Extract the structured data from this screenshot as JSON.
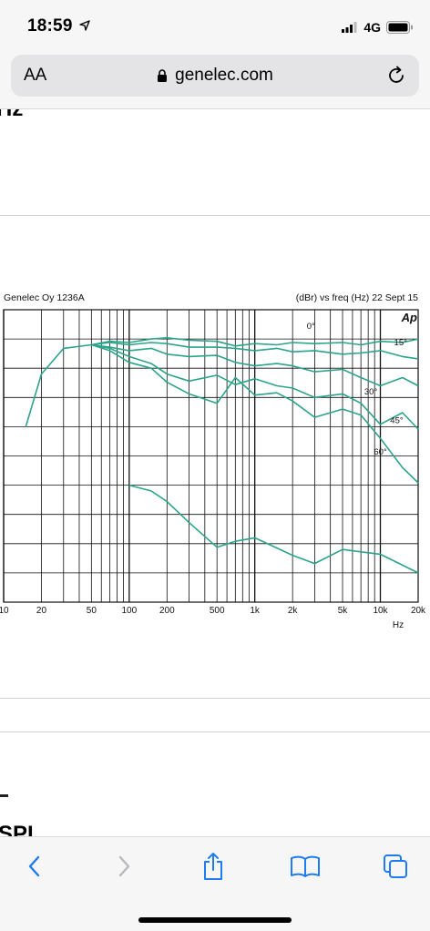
{
  "status_bar": {
    "time": "18:59",
    "network": "4G"
  },
  "address_bar": {
    "text_size_label": "AA",
    "url": "genelec.com"
  },
  "page": {
    "heading_top_fragment": "Hz",
    "heading_bottom_fragment": "SPL"
  },
  "chart_data": {
    "type": "line",
    "title": "Genelec Oy 1236A",
    "subtitle": "(dBr) vs freq (Hz) 22 Sept 15",
    "logo_text": "Ap",
    "xlabel": "Hz",
    "xscale": "log",
    "xlim": [
      10,
      20000
    ],
    "x_tick_labels": [
      "10",
      "20",
      "50",
      "100",
      "200",
      "500",
      "1k",
      "2k",
      "5k",
      "10k",
      "20k"
    ],
    "y_tick_labels": [],
    "grid": true,
    "color": "#2aa58b",
    "series": [
      {
        "name": "0°",
        "x": [
          15,
          20,
          30,
          50,
          70,
          100,
          150,
          200,
          300,
          500,
          700,
          1000,
          1500,
          2000,
          3000,
          5000,
          7000,
          10000,
          15000,
          20000
        ],
        "y": [
          -7,
          -2.5,
          -0.3,
          0,
          0.3,
          0.2,
          0.5,
          0.6,
          0.4,
          0.3,
          -0.1,
          0.1,
          0,
          0.2,
          0.1,
          0.2,
          0,
          0.3,
          0.2,
          0.5
        ]
      },
      {
        "name": "15°",
        "x": [
          50,
          70,
          100,
          150,
          200,
          300,
          500,
          700,
          1000,
          1500,
          2000,
          3000,
          5000,
          7000,
          10000,
          15000,
          20000
        ],
        "y": [
          0,
          0.2,
          0,
          0.2,
          0.1,
          -0.2,
          -0.2,
          -0.3,
          -0.5,
          -0.3,
          -0.6,
          -0.5,
          -0.8,
          -0.7,
          -0.5,
          -1,
          -1.2
        ]
      },
      {
        "name": "30°",
        "x": [
          50,
          70,
          100,
          150,
          200,
          300,
          500,
          700,
          1000,
          1500,
          2000,
          3000,
          5000,
          7000,
          10000,
          15000,
          20000
        ],
        "y": [
          0,
          -0.2,
          -0.5,
          -0.3,
          -0.8,
          -1,
          -0.9,
          -1.5,
          -1.8,
          -1.6,
          -1.8,
          -2.3,
          -2.1,
          -2.8,
          -3.5,
          -2.8,
          -3.5
        ]
      },
      {
        "name": "45°",
        "x": [
          50,
          70,
          100,
          150,
          200,
          300,
          500,
          700,
          1000,
          1500,
          2000,
          3000,
          5000,
          7000,
          10000,
          15000,
          20000
        ],
        "y": [
          0,
          -0.3,
          -1,
          -1.6,
          -2.5,
          -3.1,
          -2.6,
          -3.4,
          -2.9,
          -3.5,
          -3.7,
          -4.5,
          -4.2,
          -5,
          -6.8,
          -5.8,
          -7.2
        ]
      },
      {
        "name": "60°",
        "x": [
          50,
          70,
          100,
          150,
          200,
          300,
          500,
          700,
          1000,
          1500,
          2000,
          3000,
          5000,
          7000,
          10000,
          15000,
          20000
        ],
        "y": [
          0,
          -0.5,
          -1.5,
          -2,
          -3.2,
          -4.2,
          -5,
          -2.8,
          -4.3,
          -4.1,
          -4.8,
          -6.2,
          -5.5,
          -6,
          -8,
          -10.5,
          -11.8
        ]
      },
      {
        "name": "",
        "x": [
          100,
          150,
          200,
          300,
          500,
          700,
          1000,
          2000,
          3000,
          5000,
          7000,
          10000,
          20000
        ],
        "y": [
          -12,
          -12.5,
          -13.4,
          -15.2,
          -17.3,
          -16.8,
          -16.5,
          -18,
          -18.7,
          -17.5,
          -17.7,
          -17.9,
          -19.5
        ]
      }
    ]
  }
}
